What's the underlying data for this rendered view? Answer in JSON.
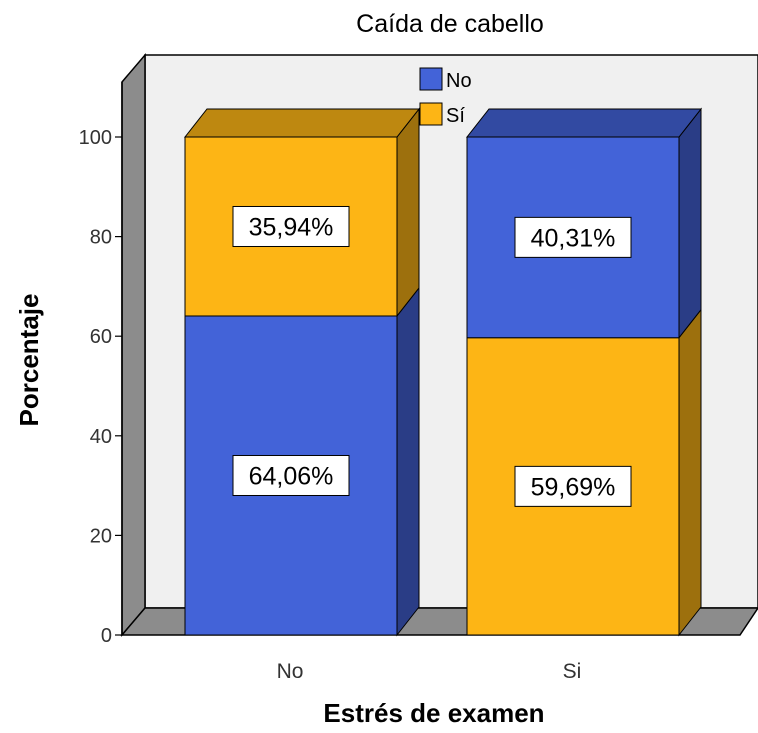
{
  "chart_data": {
    "type": "bar",
    "stacked": true,
    "three_d": true,
    "title": "Caída de cabello",
    "xlabel": "Estrés de examen",
    "ylabel": "Porcentaje",
    "ylim": [
      0,
      100
    ],
    "yticks": [
      "0",
      "20",
      "40",
      "60",
      "80",
      "100"
    ],
    "categories": [
      "No",
      "Si"
    ],
    "series": [
      {
        "name": "No",
        "color": "#4363d8",
        "values": [
          64.06,
          40.31
        ],
        "labels": [
          "64,06%",
          "40,31%"
        ]
      },
      {
        "name": "Sí",
        "color": "#fdb515",
        "values": [
          35.94,
          59.69
        ],
        "labels": [
          "35,94%",
          "59,69%"
        ]
      }
    ],
    "stack_order": [
      [
        "No",
        "Sí"
      ],
      [
        "Sí",
        "No"
      ]
    ],
    "legend": {
      "position": "top-center",
      "entries": [
        "No",
        "Sí"
      ]
    },
    "grid": false
  }
}
